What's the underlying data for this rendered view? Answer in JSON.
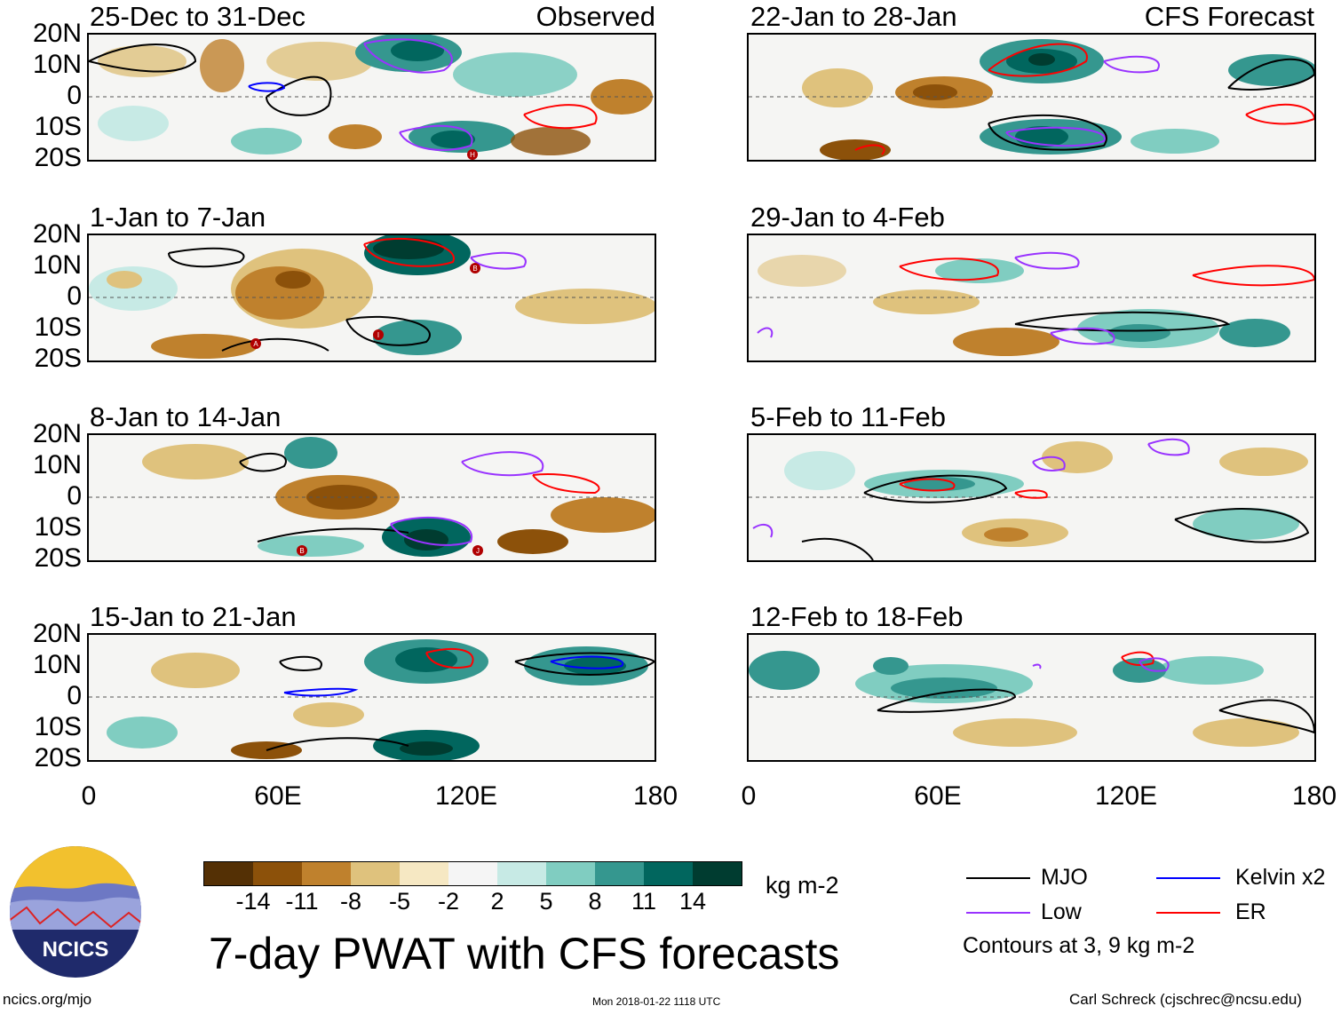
{
  "main_title": "7-day PWAT with CFS forecasts",
  "left_column_tag": "Observed",
  "right_column_tag": "CFS Forecast",
  "panels_left": [
    {
      "title": "25-Dec to 31-Dec"
    },
    {
      "title": "1-Jan to 7-Jan"
    },
    {
      "title": "8-Jan to 14-Jan"
    },
    {
      "title": "15-Jan to 21-Jan"
    }
  ],
  "panels_right": [
    {
      "title": "22-Jan to 28-Jan"
    },
    {
      "title": "29-Jan to 4-Feb"
    },
    {
      "title": "5-Feb to 11-Feb"
    },
    {
      "title": "12-Feb to 18-Feb"
    }
  ],
  "lat_labels": [
    "20N",
    "10N",
    "0",
    "10S",
    "20S"
  ],
  "lon_labels": [
    "0",
    "60E",
    "120E",
    "180"
  ],
  "colorbar": {
    "unit": "kg m-2",
    "tick_labels": [
      "-14",
      "-11",
      "-8",
      "-5",
      "-2",
      "2",
      "5",
      "8",
      "11",
      "14"
    ],
    "colors": [
      "#543005",
      "#8c510a",
      "#bf812d",
      "#dfc27d",
      "#f6e8c3",
      "#f5f5f5",
      "#c7eae5",
      "#80cdc1",
      "#35978f",
      "#01665e",
      "#003c30"
    ]
  },
  "legend": {
    "items": [
      {
        "label": "MJO",
        "color": "#000000"
      },
      {
        "label": "Low",
        "color": "#9933ff"
      },
      {
        "label": "Kelvin x2",
        "color": "#0000ff"
      },
      {
        "label": "ER",
        "color": "#ff0000"
      }
    ],
    "note": "Contours at 3, 9 kg m-2"
  },
  "logo_text": "NCICS",
  "footer": {
    "left": "ncics.org/mjo",
    "center": "Mon 2018-01-22 1118 UTC",
    "right": "Carl Schreck (cjschrec@ncsu.edu)"
  },
  "storm_markers": [
    "H",
    "B",
    "A",
    "I",
    "B",
    "J"
  ]
}
